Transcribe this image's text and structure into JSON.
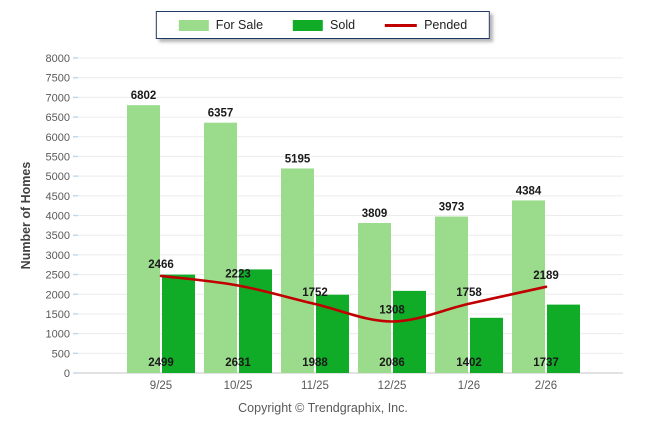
{
  "legend": {
    "items": [
      {
        "label": "For Sale",
        "swatch": "box",
        "color": "#9bdc8c"
      },
      {
        "label": "Sold",
        "swatch": "box",
        "color": "#10ac28"
      },
      {
        "label": "Pended",
        "swatch": "line",
        "color": "#c00000"
      }
    ],
    "border_color": "#1f3864"
  },
  "axes": {
    "y_title": "Number of Homes",
    "y_min": 0,
    "y_max": 8000,
    "y_step": 500
  },
  "footer": {
    "copyright": "Copyright © Trendgraphix, Inc."
  },
  "chart_data": {
    "type": "bar",
    "categories": [
      "9/25",
      "10/25",
      "11/25",
      "12/25",
      "1/26",
      "2/26"
    ],
    "series": [
      {
        "name": "For Sale",
        "type": "bar",
        "color": "#9bdc8c",
        "values": [
          6802,
          6357,
          5195,
          3809,
          3973,
          4384
        ]
      },
      {
        "name": "Sold",
        "type": "bar",
        "color": "#10ac28",
        "values": [
          2499,
          2631,
          1988,
          2086,
          1402,
          1737
        ]
      },
      {
        "name": "Pended",
        "type": "line",
        "color": "#c00000",
        "values": [
          2466,
          2223,
          1752,
          1308,
          1758,
          2189
        ]
      }
    ],
    "title": "",
    "xlabel": "",
    "ylabel": "Number of Homes",
    "ylim": [
      0,
      8000
    ],
    "y_step": 500,
    "grid": true,
    "legend_position": "top",
    "label_color": "#1a1a1a",
    "gridline_color": "#ececec",
    "baseline_color": "#c6c6c6",
    "tick_color": "#bdd7ee",
    "axis_text_color": "#595959",
    "y_title_color": "#404040"
  }
}
